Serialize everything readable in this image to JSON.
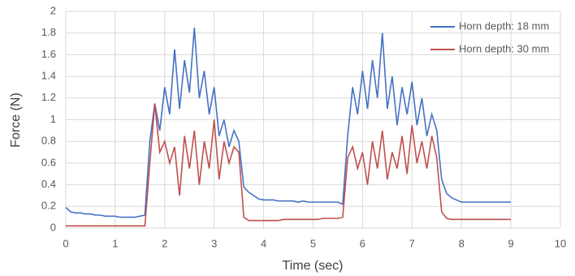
{
  "chart_data": {
    "type": "line",
    "x_label": "Time (sec)",
    "y_label": "Force (N)",
    "x": [
      0,
      0.1,
      0.2,
      0.3,
      0.4,
      0.5,
      0.6,
      0.7,
      0.8,
      0.9,
      1,
      1.1,
      1.2,
      1.3,
      1.4,
      1.5,
      1.6,
      1.7,
      1.8,
      1.9,
      2,
      2.1,
      2.2,
      2.3,
      2.4,
      2.5,
      2.6,
      2.7,
      2.8,
      2.9,
      3,
      3.1,
      3.2,
      3.3,
      3.4,
      3.5,
      3.6,
      3.7,
      3.8,
      3.9,
      4,
      4.1,
      4.2,
      4.3,
      4.4,
      4.5,
      4.6,
      4.7,
      4.8,
      4.9,
      5,
      5.1,
      5.2,
      5.3,
      5.4,
      5.5,
      5.6,
      5.7,
      5.8,
      5.9,
      6,
      6.1,
      6.2,
      6.3,
      6.4,
      6.5,
      6.6,
      6.7,
      6.8,
      6.9,
      7,
      7.1,
      7.2,
      7.3,
      7.4,
      7.5,
      7.6,
      7.7,
      7.8,
      7.9,
      8,
      8.1,
      8.2,
      8.3,
      8.4,
      8.5,
      8.6,
      8.7,
      8.8,
      8.9,
      9
    ],
    "series": [
      {
        "name": "Horn depth: 18 mm",
        "color": "#4472c4",
        "values": [
          0.19,
          0.15,
          0.14,
          0.14,
          0.13,
          0.13,
          0.12,
          0.12,
          0.11,
          0.11,
          0.11,
          0.1,
          0.1,
          0.1,
          0.1,
          0.11,
          0.12,
          0.8,
          1.15,
          0.9,
          1.3,
          1.05,
          1.65,
          1.1,
          1.55,
          1.25,
          1.85,
          1.2,
          1.45,
          1.05,
          1.3,
          0.85,
          1,
          0.75,
          0.9,
          0.8,
          0.38,
          0.33,
          0.3,
          0.27,
          0.26,
          0.26,
          0.26,
          0.25,
          0.25,
          0.25,
          0.25,
          0.24,
          0.25,
          0.24,
          0.24,
          0.24,
          0.24,
          0.24,
          0.24,
          0.24,
          0.22,
          0.85,
          1.3,
          1.05,
          1.45,
          1.1,
          1.55,
          1.2,
          1.8,
          1.1,
          1.4,
          0.95,
          1.3,
          1.05,
          1.35,
          0.95,
          1.2,
          0.85,
          1.05,
          0.9,
          0.45,
          0.32,
          0.28,
          0.26,
          0.24,
          0.24,
          0.24,
          0.24,
          0.24,
          0.24,
          0.24,
          0.24,
          0.24,
          0.24,
          0.24
        ]
      },
      {
        "name": "Horn depth: 30 mm",
        "color": "#c0504d",
        "values": [
          0.02,
          0.02,
          0.02,
          0.02,
          0.02,
          0.02,
          0.02,
          0.02,
          0.02,
          0.02,
          0.02,
          0.02,
          0.02,
          0.02,
          0.02,
          0.02,
          0.02,
          0.6,
          1.15,
          0.7,
          0.8,
          0.6,
          0.75,
          0.3,
          0.85,
          0.55,
          0.9,
          0.4,
          0.8,
          0.55,
          1,
          0.45,
          0.8,
          0.6,
          0.75,
          0.7,
          0.1,
          0.07,
          0.07,
          0.07,
          0.07,
          0.07,
          0.07,
          0.07,
          0.08,
          0.08,
          0.08,
          0.08,
          0.08,
          0.08,
          0.08,
          0.08,
          0.09,
          0.09,
          0.09,
          0.09,
          0.1,
          0.65,
          0.75,
          0.55,
          0.7,
          0.4,
          0.8,
          0.55,
          0.9,
          0.45,
          0.7,
          0.55,
          0.85,
          0.5,
          0.95,
          0.6,
          0.8,
          0.55,
          0.85,
          0.65,
          0.15,
          0.09,
          0.08,
          0.08,
          0.08,
          0.08,
          0.08,
          0.08,
          0.08,
          0.08,
          0.08,
          0.08,
          0.08,
          0.08,
          0.08
        ]
      }
    ],
    "xlim": [
      0,
      10
    ],
    "xticks": [
      0,
      1,
      2,
      3,
      4,
      5,
      6,
      7,
      8,
      9,
      10
    ],
    "ylim": [
      0,
      2
    ],
    "yticks": [
      0,
      0.2,
      0.4,
      0.6,
      0.8,
      1,
      1.2,
      1.4,
      1.6,
      1.8,
      2
    ],
    "grid": true,
    "legend": "upper right"
  }
}
